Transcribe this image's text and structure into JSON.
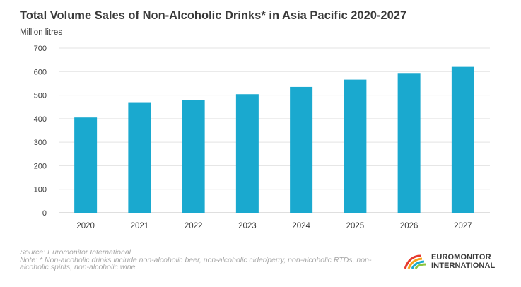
{
  "chart_data": {
    "type": "bar",
    "title": "Total Volume Sales of Non-Alcoholic Drinks* in Asia Pacific 2020-2027",
    "ylabel": "Million litres",
    "xlabel": "",
    "categories": [
      "2020",
      "2021",
      "2022",
      "2023",
      "2024",
      "2025",
      "2026",
      "2027"
    ],
    "values": [
      405,
      467,
      479,
      504,
      535,
      566,
      594,
      620
    ],
    "ylim": [
      0,
      700
    ],
    "yticks": [
      0,
      100,
      200,
      300,
      400,
      500,
      600,
      700
    ],
    "grid": true,
    "bar_color": "#1aa9cf"
  },
  "footer": {
    "source": "Source: Euromonitor International",
    "note": "Note: * Non-alcoholic drinks include non-alcoholic beer, non-alcoholic cider/perry, non-alcoholic RTDs, non-alcoholic spirits, non-alcoholic wine"
  },
  "logo": {
    "line1": "EUROMONITOR",
    "line2": "INTERNATIONAL",
    "icon": "euromonitor-arc-logo",
    "colors": [
      "#e63a2e",
      "#f7a21b",
      "#1aa9cf",
      "#8cc63f"
    ]
  }
}
